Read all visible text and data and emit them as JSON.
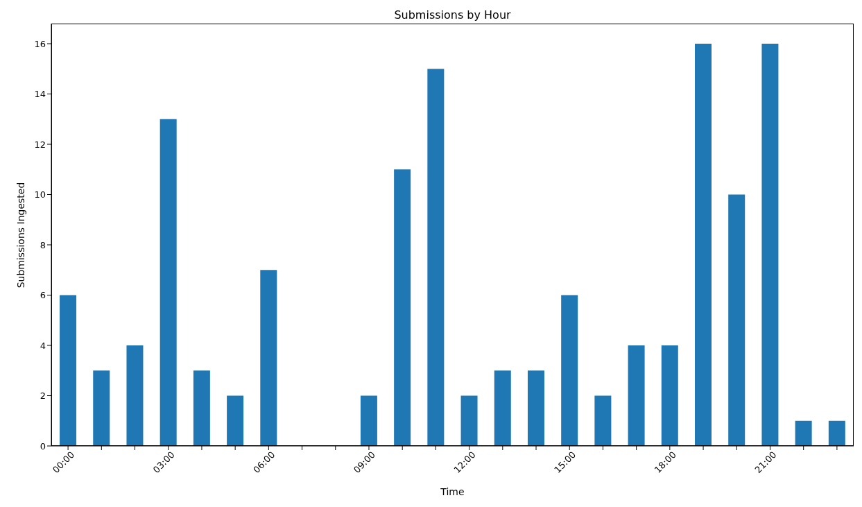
{
  "chart_data": {
    "type": "bar",
    "title": "Submissions by Hour",
    "xlabel": "Time",
    "ylabel": "Submissions Ingested",
    "categories": [
      "00:00",
      null,
      null,
      "03:00",
      null,
      null,
      "06:00",
      null,
      null,
      "09:00",
      null,
      null,
      "12:00",
      null,
      null,
      "15:00",
      null,
      null,
      "18:00",
      null,
      null,
      "21:00",
      null,
      null
    ],
    "values": [
      6,
      3,
      4,
      13,
      3,
      2,
      7,
      0,
      0,
      2,
      11,
      15,
      2,
      3,
      3,
      6,
      2,
      4,
      4,
      16,
      10,
      16,
      1,
      1
    ],
    "color": "#1f77b4",
    "ylim": [
      0,
      16.8
    ],
    "yticks": [
      0,
      2,
      4,
      6,
      8,
      10,
      12,
      14,
      16
    ],
    "grid": false
  }
}
